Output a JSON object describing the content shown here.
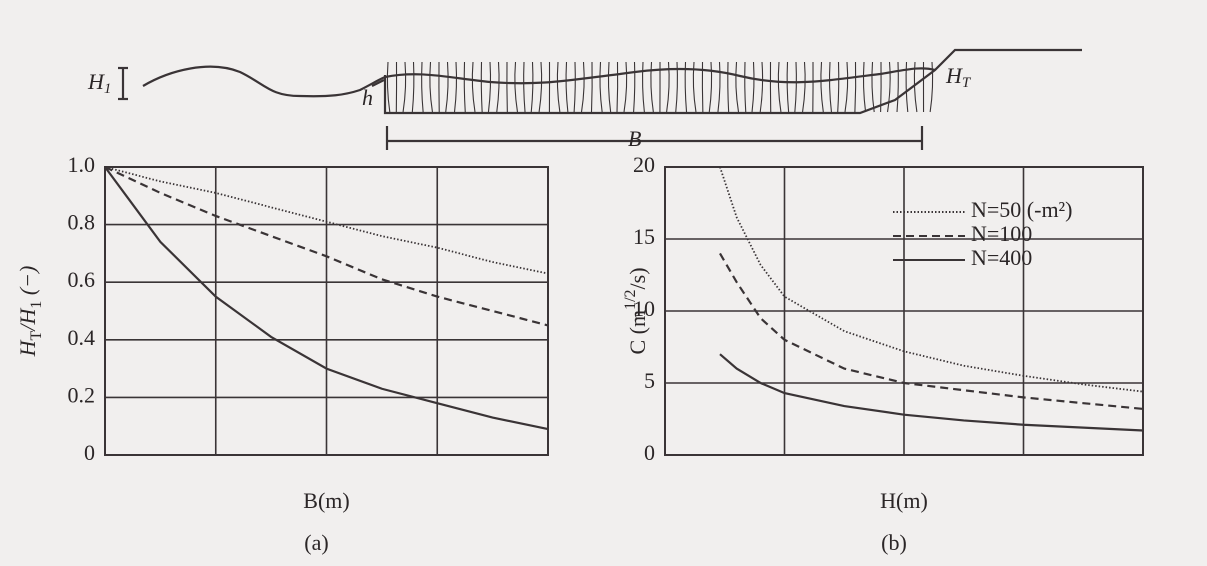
{
  "diagram": {
    "labels": [
      {
        "main": "H",
        "sub": "1"
      },
      {
        "main": "h",
        "sub": ""
      },
      {
        "main": "B",
        "sub": ""
      },
      {
        "main": "H",
        "sub": "T"
      }
    ]
  },
  "chart_data": [
    {
      "type": "line",
      "caption": "(a)",
      "xlabel": "B(m)",
      "ylabel_parts": [
        {
          "text": "H"
        },
        {
          "text": "T",
          "sub": true
        },
        {
          "text": "/H"
        },
        {
          "text": "1",
          "sub": true
        },
        {
          "text": " (−)"
        }
      ],
      "x": [
        0,
        0.5,
        1,
        1.5,
        2,
        2.5,
        3,
        3.5,
        4
      ],
      "xlim": [
        0,
        4
      ],
      "ylim": [
        0,
        1
      ],
      "yticks": [
        0,
        0.2,
        0.4,
        0.6,
        0.8,
        {
          "value": 1,
          "label": "1.0"
        }
      ],
      "grid": true,
      "series": [
        {
          "color": "#3a3436",
          "style": "dotted",
          "values": [
            1.0,
            0.95,
            0.91,
            0.86,
            0.81,
            0.76,
            0.72,
            0.67,
            0.63
          ]
        },
        {
          "color": "#3a3436",
          "style": "dashed",
          "values": [
            1.0,
            0.91,
            0.83,
            0.76,
            0.69,
            0.61,
            0.55,
            0.5,
            0.45
          ]
        },
        {
          "color": "#3a3436",
          "style": "solid",
          "values": [
            1.0,
            0.74,
            0.55,
            0.41,
            0.3,
            0.23,
            0.18,
            0.13,
            0.09
          ]
        }
      ]
    },
    {
      "type": "line",
      "caption": "(b)",
      "xlabel": "H(m)",
      "ylabel_parts": [
        {
          "text": "C   (m"
        },
        {
          "text": "1/2",
          "sup": true
        },
        {
          "text": "/s)"
        }
      ],
      "x": [
        0.46,
        0.6,
        0.8,
        1,
        1.5,
        2,
        2.5,
        3,
        3.5,
        4
      ],
      "xlim": [
        0,
        4
      ],
      "ylim": [
        0,
        20
      ],
      "yticks": [
        0,
        5,
        10,
        15,
        20
      ],
      "grid": true,
      "legend": "top-right",
      "series": [
        {
          "name": "N=50  (-m²)",
          "color": "#3a3436",
          "style": "dotted",
          "values": [
            20,
            16.5,
            13.2,
            11,
            8.6,
            7.2,
            6.2,
            5.5,
            4.9,
            4.4
          ]
        },
        {
          "name": "N=100",
          "color": "#3a3436",
          "style": "dashed",
          "values": [
            14,
            12,
            9.5,
            8,
            6,
            5,
            4.5,
            4,
            3.6,
            3.2
          ]
        },
        {
          "name": "N=400",
          "color": "#3a3436",
          "style": "solid",
          "values": [
            7,
            6,
            5,
            4.3,
            3.4,
            2.8,
            2.4,
            2.1,
            1.9,
            1.7
          ]
        }
      ]
    }
  ]
}
